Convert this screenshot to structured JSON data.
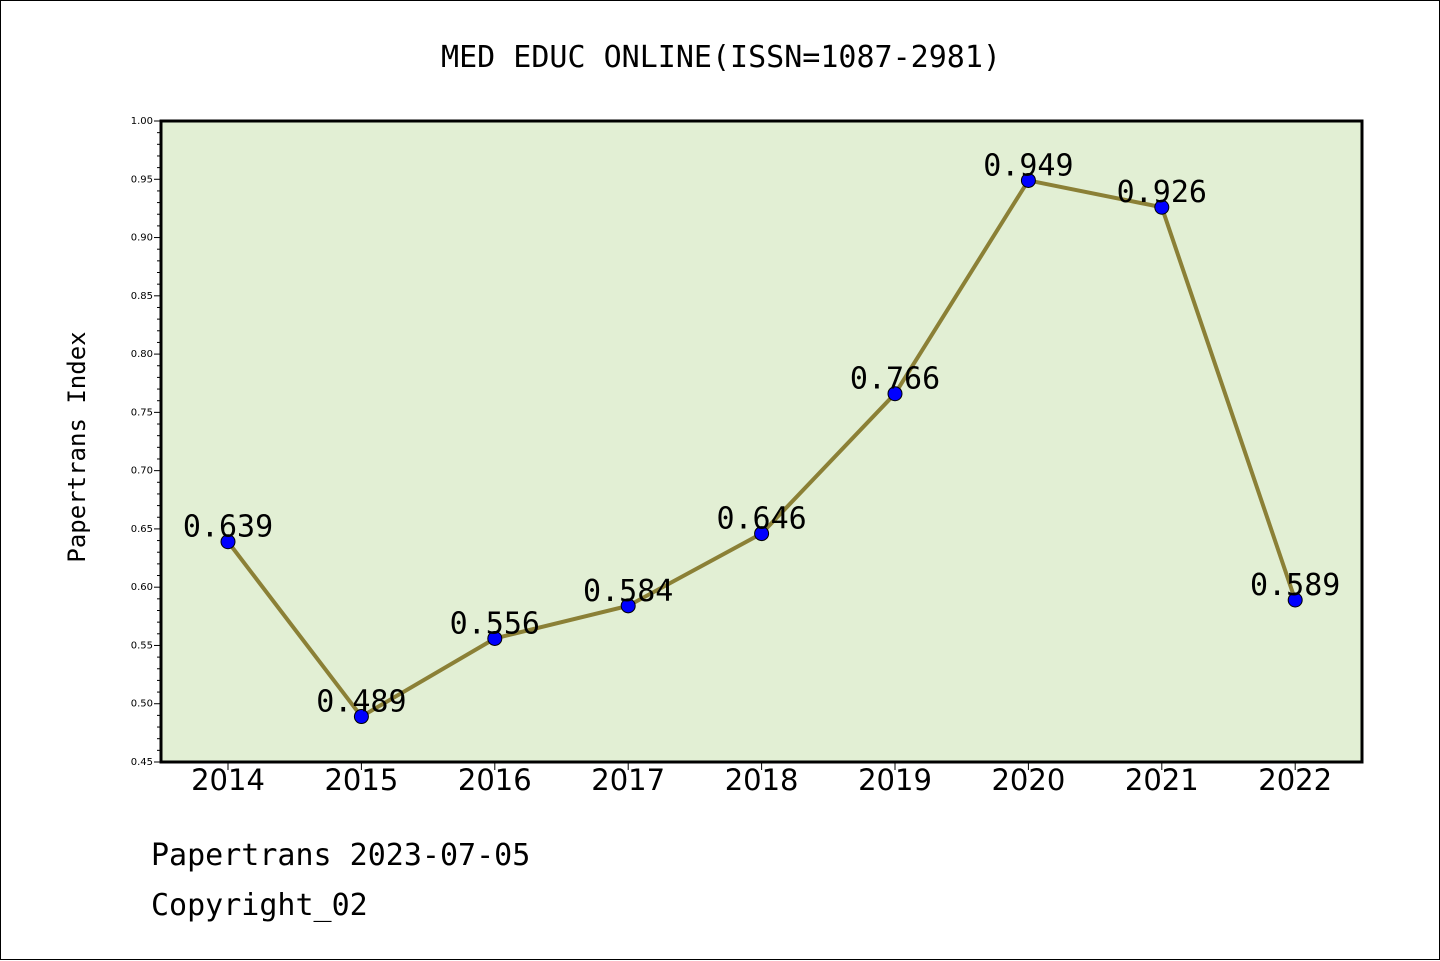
{
  "chart_data": {
    "type": "line",
    "title": "MED EDUC ONLINE(ISSN=1087-2981)",
    "xlabel": "",
    "ylabel": "Papertrans Index",
    "categories": [
      "2014",
      "2015",
      "2016",
      "2017",
      "2018",
      "2019",
      "2020",
      "2021",
      "2022"
    ],
    "values": [
      0.639,
      0.489,
      0.556,
      0.584,
      0.646,
      0.766,
      0.949,
      0.926,
      0.589
    ],
    "data_labels": [
      "0.639",
      "0.489",
      "0.556",
      "0.584",
      "0.646",
      "0.766",
      "0.949",
      "0.926",
      "0.589"
    ],
    "ylim": [
      0.45,
      1.0
    ],
    "yticks": [
      "0.45",
      "0.50",
      "0.55",
      "0.60",
      "0.65",
      "0.70",
      "0.75",
      "0.80",
      "0.85",
      "0.90",
      "0.95",
      "1.00"
    ],
    "grid": false,
    "colors": {
      "plot_background": "#e2efd4",
      "line": "#8b8036",
      "marker": "#0000ff"
    }
  },
  "footer": {
    "credit": "Papertrans 2023-07-05",
    "copyright": "Copyright_02"
  }
}
